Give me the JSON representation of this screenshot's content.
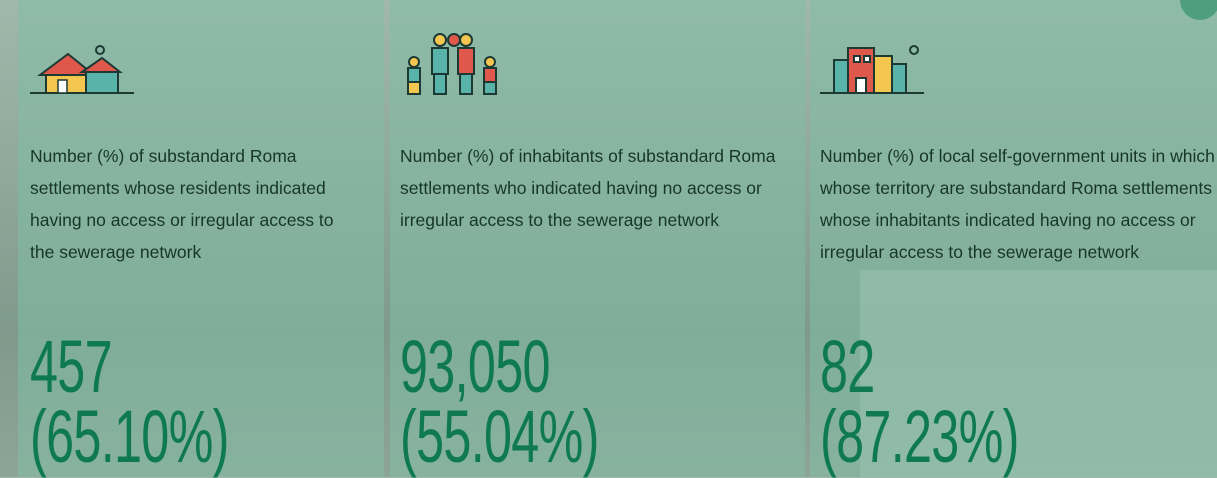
{
  "cards": [
    {
      "description": "Number (%) of substandard Roma settlements whose residents indicated having no access or irregular access to the sewerage network",
      "value": "457",
      "percent": "(65.10%)"
    },
    {
      "description": "Number (%) of inhabitants of substandard Roma settlements who indicated having no access or irregular access to the sewerage network",
      "value": "93,050",
      "percent": "(55.04%)"
    },
    {
      "description": "Number (%) of local self-government units in which whose territory are substandard Roma settlements whose inhabitants indicated having no access or irregular access to the sewerage network",
      "value": "82",
      "percent": "(87.23%)"
    }
  ]
}
